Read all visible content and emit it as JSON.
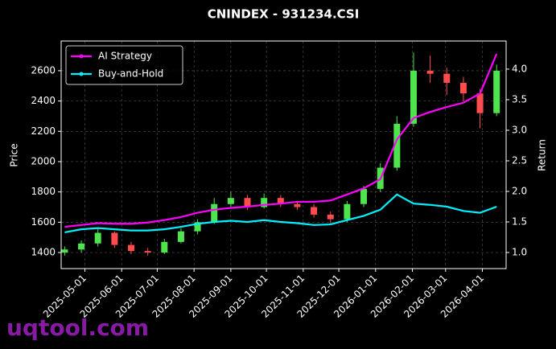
{
  "chart_data": {
    "type": "candlestick",
    "title": "CNINDEX - 931234.CSI",
    "ylabel": "Price",
    "y2label": "Return",
    "x": [
      "2025-04-14",
      "2025-04-28",
      "2025-05-12",
      "2025-05-26",
      "2025-06-09",
      "2025-06-23",
      "2025-07-07",
      "2025-07-21",
      "2025-08-04",
      "2025-08-18",
      "2025-09-01",
      "2025-09-15",
      "2025-09-29",
      "2025-10-13",
      "2025-10-27",
      "2025-11-10",
      "2025-11-24",
      "2025-12-08",
      "2025-12-22",
      "2026-01-05",
      "2026-01-19",
      "2026-02-02",
      "2026-02-16",
      "2026-03-02",
      "2026-03-16",
      "2026-03-30",
      "2026-04-13"
    ],
    "open": [
      1400,
      1420,
      1460,
      1530,
      1450,
      1410,
      1400,
      1470,
      1540,
      1600,
      1720,
      1760,
      1700,
      1760,
      1720,
      1700,
      1650,
      1620,
      1720,
      1820,
      1960,
      2250,
      2600,
      2580,
      2520,
      2450,
      2320
    ],
    "high": [
      1440,
      1480,
      1560,
      1540,
      1470,
      1430,
      1490,
      1560,
      1620,
      1760,
      1800,
      1780,
      1790,
      1780,
      1740,
      1720,
      1670,
      1740,
      1840,
      1990,
      2300,
      2720,
      2700,
      2620,
      2560,
      2480,
      2640
    ],
    "low": [
      1380,
      1400,
      1440,
      1430,
      1390,
      1380,
      1390,
      1460,
      1520,
      1590,
      1700,
      1680,
      1690,
      1700,
      1680,
      1630,
      1590,
      1600,
      1700,
      1800,
      1940,
      2230,
      2520,
      2440,
      2400,
      2220,
      2300
    ],
    "close": [
      1420,
      1460,
      1530,
      1450,
      1410,
      1400,
      1470,
      1540,
      1600,
      1720,
      1760,
      1700,
      1760,
      1720,
      1700,
      1650,
      1620,
      1720,
      1820,
      1960,
      2250,
      2600,
      2580,
      2520,
      2450,
      2320,
      2600
    ],
    "up_color": "#4ee44e",
    "down_color": "#ff4d4d",
    "series": [
      {
        "name": "AI Strategy",
        "color": "#ff00ff",
        "axis": "y2",
        "values": [
          1.42,
          1.45,
          1.48,
          1.47,
          1.47,
          1.49,
          1.53,
          1.58,
          1.65,
          1.7,
          1.73,
          1.75,
          1.78,
          1.8,
          1.83,
          1.83,
          1.85,
          1.95,
          2.05,
          2.2,
          2.85,
          3.2,
          3.3,
          3.38,
          3.45,
          3.6,
          4.25
        ]
      },
      {
        "name": "Buy-and-Hold",
        "color": "#00f0ff",
        "axis": "y2",
        "values": [
          1.33,
          1.38,
          1.4,
          1.38,
          1.36,
          1.36,
          1.38,
          1.42,
          1.47,
          1.5,
          1.52,
          1.5,
          1.53,
          1.5,
          1.48,
          1.45,
          1.46,
          1.53,
          1.6,
          1.7,
          1.95,
          1.8,
          1.78,
          1.75,
          1.68,
          1.65,
          1.75
        ]
      }
    ],
    "xlim": [
      "2025-04-11",
      "2026-04-21"
    ],
    "xticks": [
      "2025-05-01",
      "2025-06-01",
      "2025-07-01",
      "2025-08-01",
      "2025-09-01",
      "2025-10-01",
      "2025-11-01",
      "2025-12-01",
      "2026-01-01",
      "2026-02-01",
      "2026-03-01",
      "2026-04-01"
    ],
    "ylim": [
      1294,
      2796
    ],
    "yticks": [
      1400,
      1600,
      1800,
      2000,
      2200,
      2400,
      2600
    ],
    "y2lim": [
      0.737,
      4.46
    ],
    "y2ticks": [
      {
        "value": 1.0,
        "label": "1.0"
      },
      {
        "value": 1.5,
        "label": "1.5"
      },
      {
        "value": 2.0,
        "label": "2.0"
      },
      {
        "value": 2.5,
        "label": "2.5"
      },
      {
        "value": 3.0,
        "label": "3.0"
      },
      {
        "value": 3.5,
        "label": "3.5"
      },
      {
        "value": 4.0,
        "label": "4.0"
      }
    ],
    "grid": true,
    "legend": "upper left",
    "watermark": "uqtool.com"
  }
}
